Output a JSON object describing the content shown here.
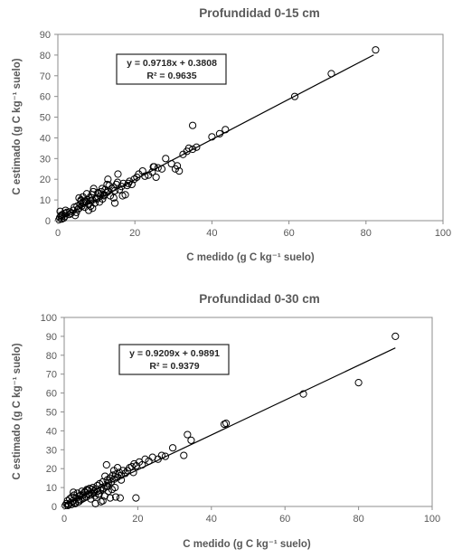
{
  "chart_data": [
    {
      "type": "scatter",
      "title": "Profundidad 0-15 cm",
      "xlabel": "C medido (g C kg⁻¹ suelo)",
      "ylabel": "C estimado (g C kg⁻¹ suelo)",
      "xlim": [
        0,
        100
      ],
      "ylim": [
        0,
        90
      ],
      "xticks": [
        0,
        20,
        40,
        60,
        80,
        100
      ],
      "yticks": [
        0,
        10,
        20,
        30,
        40,
        50,
        60,
        70,
        80,
        90
      ],
      "grid": false,
      "legend": "none",
      "annotation": {
        "equation": "y = 0.9718x + 0.3808",
        "r2": "R² = 0.9635"
      },
      "trendline": {
        "slope": 0.9718,
        "intercept": 0.3808,
        "x_range": [
          0,
          82
        ]
      },
      "series": [
        {
          "x": [
            0.3,
            0.5,
            0.8,
            1.0,
            1.2,
            1.5,
            1.8,
            2.0,
            2.3,
            0.6,
            1.1,
            3.0,
            3.4,
            4.0,
            4.3,
            4.8,
            5.0,
            5.2,
            5.5,
            5.8,
            6.0,
            6.2,
            6.5,
            6.8,
            7.0,
            7.3,
            7.6,
            8.0,
            8.2,
            8.5,
            8.8,
            9.0,
            9.3,
            9.6,
            10.0,
            10.2,
            10.5,
            10.8,
            11.0,
            11.3,
            11.6,
            12.0,
            12.3,
            12.6,
            13.0,
            13.3,
            13.6,
            14.0,
            14.4,
            14.8,
            15.2,
            15.6,
            16.0,
            16.5,
            17.0,
            17.5,
            18.0,
            18.6,
            19.2,
            19.8,
            20.5,
            21.0,
            22.0,
            22.6,
            23.5,
            24.5,
            25.0,
            25.5,
            27.0,
            28.0,
            29.5,
            31.0,
            31.5,
            32.5,
            33.5,
            34.0,
            35.0,
            36.0,
            40.0,
            42.0,
            43.5,
            61.5,
            71.0,
            82.5,
            2.0,
            3.0,
            4.5,
            6.0,
            8.0,
            9.0,
            5.5,
            7.5,
            12.0,
            14.5,
            9.2,
            13.0,
            14.8,
            6.5,
            10.5,
            11.5,
            8.5,
            7.2,
            16.8,
            18.3,
            35.0,
            24.8,
            26.0,
            30.5,
            12.8,
            15.5
          ],
          "y": [
            0.5,
            1.5,
            2.5,
            0.8,
            3.0,
            1.2,
            2.0,
            3.5,
            4.0,
            4.5,
            2.2,
            4.2,
            3.5,
            5.0,
            6.5,
            4.0,
            7.0,
            5.5,
            6.0,
            8.0,
            9.5,
            7.0,
            11.5,
            8.5,
            6.5,
            9.0,
            10.0,
            8.0,
            11.0,
            9.5,
            12.5,
            10.0,
            15.5,
            8.5,
            11.0,
            10.5,
            13.0,
            9.0,
            12.0,
            14.0,
            10.5,
            12.5,
            15.0,
            13.5,
            14.0,
            17.0,
            12.0,
            15.5,
            16.0,
            14.5,
            17.5,
            22.5,
            15.0,
            16.5,
            18.0,
            12.5,
            17.0,
            19.0,
            17.5,
            20.0,
            21.0,
            22.5,
            24.0,
            21.5,
            22.0,
            23.5,
            26.0,
            21.0,
            25.0,
            30.0,
            27.5,
            26.5,
            24.0,
            32.0,
            33.5,
            35.0,
            46.0,
            35.5,
            40.5,
            42.0,
            44.0,
            60.0,
            71.0,
            82.5,
            5.0,
            3.0,
            2.5,
            10.0,
            5.0,
            6.0,
            11.0,
            13.0,
            12.0,
            11.0,
            14.0,
            20.0,
            8.5,
            9.0,
            13.5,
            15.5,
            7.0,
            9.5,
            12.0,
            18.0,
            34.5,
            26.0,
            25.5,
            25.0,
            17.5,
            18.5
          ]
        }
      ]
    },
    {
      "type": "scatter",
      "title": "Profundidad 0-30 cm",
      "xlabel": "C medido (g C kg⁻¹ suelo)",
      "ylabel": "C estimado (g C kg⁻¹ suelo)",
      "xlim": [
        0,
        100
      ],
      "ylim": [
        0,
        100
      ],
      "xticks": [
        0,
        20,
        40,
        60,
        80,
        100
      ],
      "yticks": [
        0,
        10,
        20,
        30,
        40,
        50,
        60,
        70,
        80,
        90,
        100
      ],
      "grid": false,
      "legend": "none",
      "annotation": {
        "equation": "y = 0.9209x + 0.9891",
        "r2": "R² = 0.9379"
      },
      "trendline": {
        "slope": 0.9209,
        "intercept": 0.9891,
        "x_range": [
          0,
          90
        ]
      },
      "series": [
        {
          "x": [
            0.3,
            0.6,
            0.9,
            1.2,
            1.5,
            1.8,
            2.1,
            2.4,
            2.7,
            3.0,
            3.3,
            3.6,
            3.9,
            4.2,
            4.5,
            4.8,
            5.1,
            5.4,
            5.7,
            6.0,
            6.3,
            6.6,
            6.9,
            7.2,
            7.5,
            7.8,
            8.1,
            8.4,
            8.7,
            9.0,
            9.3,
            9.6,
            9.9,
            10.2,
            10.5,
            10.8,
            11.1,
            11.4,
            11.7,
            12.0,
            12.4,
            12.8,
            13.2,
            13.6,
            14.0,
            14.5,
            15.0,
            15.5,
            16.0,
            16.6,
            17.2,
            17.8,
            18.4,
            19.0,
            19.6,
            20.4,
            21.2,
            22.0,
            23.0,
            24.0,
            25.5,
            26.5,
            27.5,
            29.5,
            32.5,
            33.5,
            34.5,
            43.5,
            44.0,
            65.0,
            80.0,
            90.0,
            1.0,
            2.0,
            3.0,
            4.0,
            5.0,
            6.0,
            7.0,
            8.0,
            9.0,
            10.0,
            11.0,
            12.0,
            13.0,
            14.0,
            5.5,
            8.5,
            11.5,
            13.5,
            14.5,
            19.5,
            10.5,
            12.5,
            9.5,
            7.5,
            6.5,
            4.5,
            2.5,
            15.5,
            11.8,
            13.8,
            15.2,
            18.8,
            4.0,
            6.2
          ],
          "y": [
            0.5,
            1.5,
            3.0,
            1.0,
            4.0,
            2.0,
            5.0,
            3.0,
            6.0,
            1.5,
            4.5,
            7.0,
            2.5,
            5.5,
            3.5,
            8.0,
            6.0,
            4.5,
            7.5,
            5.0,
            8.5,
            6.5,
            9.5,
            4.0,
            7.0,
            10.0,
            8.0,
            5.5,
            9.0,
            11.0,
            6.5,
            12.0,
            8.5,
            10.0,
            13.0,
            9.5,
            16.0,
            11.0,
            14.0,
            12.5,
            15.0,
            13.0,
            16.5,
            14.5,
            17.0,
            15.5,
            18.0,
            16.5,
            19.0,
            17.5,
            19.0,
            20.5,
            21.0,
            22.5,
            21.5,
            23.5,
            22.0,
            25.0,
            24.0,
            26.0,
            25.0,
            27.0,
            26.5,
            31.0,
            27.0,
            38.0,
            35.0,
            43.5,
            44.0,
            59.5,
            65.5,
            90.0,
            0.5,
            1.0,
            2.0,
            3.5,
            4.0,
            5.0,
            6.0,
            7.0,
            8.0,
            2.5,
            5.5,
            8.0,
            9.0,
            5.0,
            7.5,
            1.5,
            22.0,
            19.0,
            20.5,
            4.5,
            3.0,
            4.5,
            6.5,
            9.0,
            8.5,
            6.0,
            7.5,
            14.0,
            10.5,
            10.0,
            4.5,
            18.0,
            2.5,
            9.0
          ]
        }
      ]
    }
  ]
}
